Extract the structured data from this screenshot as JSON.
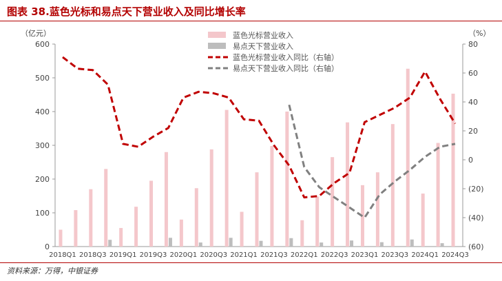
{
  "title": "图表 38.蓝色光标和易点天下营业收入及同比增长率",
  "source": "资料来源：万得，中银证券",
  "chart_data": {
    "type": "bar",
    "categories": [
      "2018Q1",
      "2018Q2",
      "2018Q3",
      "2018Q4",
      "2019Q1",
      "2019Q2",
      "2019Q3",
      "2019Q4",
      "2020Q1",
      "2020Q2",
      "2020Q3",
      "2020Q4",
      "2021Q1",
      "2021Q2",
      "2021Q3",
      "2021Q4",
      "2022Q1",
      "2022Q2",
      "2022Q3",
      "2022Q4",
      "2023Q1",
      "2023Q2",
      "2023Q3",
      "2023Q4",
      "2024Q1",
      "2024Q2",
      "2024Q3"
    ],
    "xtick_labels": [
      "2018Q1",
      "2018Q3",
      "2019Q1",
      "2019Q3",
      "2020Q1",
      "2020Q3",
      "2021Q1",
      "2021Q3",
      "2022Q1",
      "2022Q3",
      "2023Q1",
      "2023Q3",
      "2024Q1",
      "2024Q3"
    ],
    "left_axis": {
      "unit_label": "（亿元）",
      "ylim": [
        0,
        600
      ],
      "ticks": [
        "0",
        "100",
        "200",
        "300",
        "400",
        "500",
        "600"
      ]
    },
    "right_axis": {
      "unit_label": "（%）",
      "ylim": [
        -60,
        80
      ],
      "ticks": [
        "(60)",
        "(40)",
        "(20)",
        "0",
        "20",
        "40",
        "60",
        "80"
      ]
    },
    "series": [
      {
        "name": "蓝色光标营业收入",
        "kind": "bar",
        "axis": "left",
        "color": "#f4c7cb",
        "values": [
          50,
          108,
          170,
          230,
          55,
          118,
          195,
          280,
          80,
          173,
          288,
          405,
          103,
          220,
          298,
          400,
          78,
          148,
          265,
          368,
          182,
          220,
          363,
          527,
          157,
          307,
          453
        ]
      },
      {
        "name": "易点天下营业收入",
        "kind": "bar",
        "axis": "left",
        "color": "#bdbdbd",
        "values": [
          null,
          null,
          null,
          null,
          null,
          null,
          null,
          null,
          null,
          null,
          null,
          null,
          null,
          null,
          null,
          null,
          null,
          null,
          null,
          null,
          null,
          null,
          null,
          null,
          null,
          null,
          null
        ],
        "values_actual": [
          null,
          null,
          null,
          20,
          null,
          null,
          null,
          26,
          null,
          12,
          null,
          26,
          null,
          17,
          null,
          25,
          null,
          12,
          null,
          18,
          null,
          13,
          null,
          21,
          null,
          10,
          null
        ]
      },
      {
        "name": "蓝色光标营业收入同比（右轴）",
        "kind": "line",
        "axis": "right",
        "color": "#c00000",
        "dash": true,
        "values": [
          71,
          63,
          62,
          52,
          11,
          9,
          16,
          22,
          43,
          47,
          46,
          43,
          28,
          27,
          10,
          -4,
          -26,
          -25,
          -16,
          -9,
          26,
          31,
          36,
          43,
          61,
          42,
          25
        ]
      },
      {
        "name": "易点天下营业收入同比（右轴）",
        "kind": "line",
        "axis": "right",
        "color": "#808080",
        "dash": true,
        "values": [
          null,
          null,
          null,
          null,
          null,
          null,
          null,
          null,
          null,
          null,
          null,
          null,
          null,
          null,
          null,
          38,
          -5,
          -19,
          -26,
          -33,
          -40,
          -24,
          -15,
          -7,
          2,
          9,
          11
        ]
      }
    ],
    "legend_position": "top-center"
  }
}
